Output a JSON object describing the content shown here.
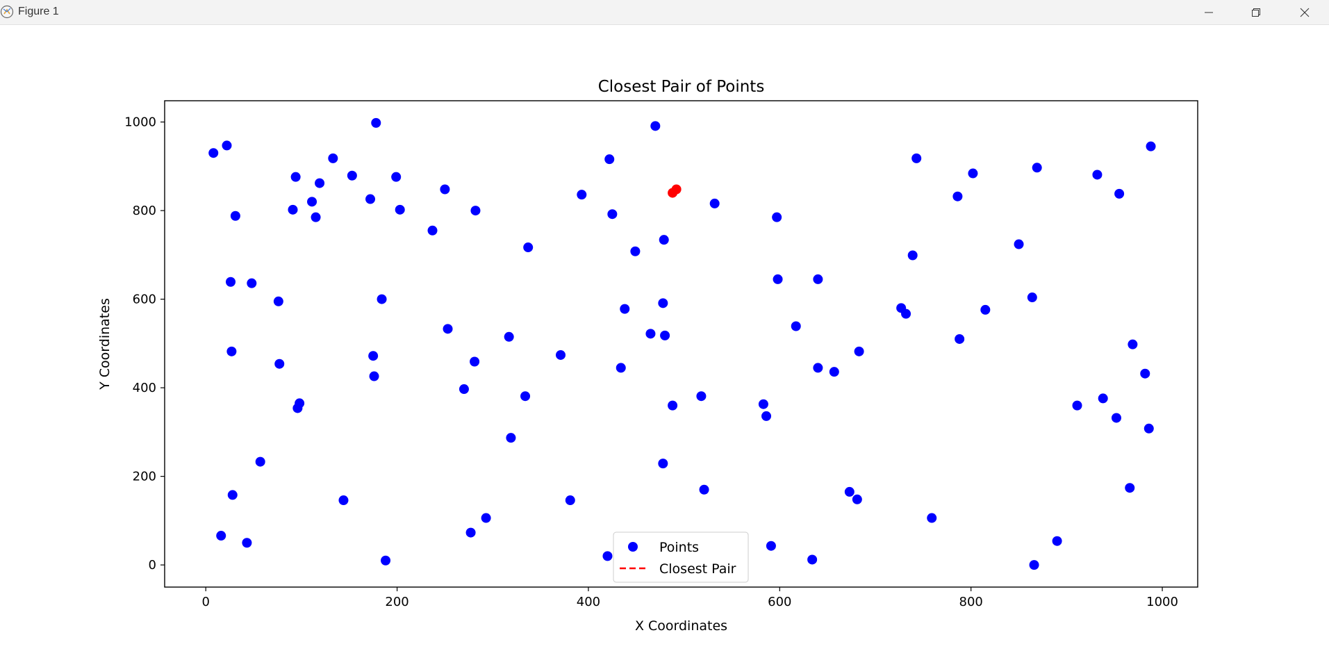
{
  "window": {
    "title": "Figure 1",
    "controls": [
      "minimize-icon",
      "restore-icon",
      "close-icon"
    ]
  },
  "chart_data": {
    "type": "scatter",
    "title": "Closest Pair of Points",
    "xlabel": "X Coordinates",
    "ylabel": "Y Coordinates",
    "xlim": [
      -43,
      1037
    ],
    "ylim": [
      -50,
      1048
    ],
    "xticks": [
      0,
      200,
      400,
      600,
      800,
      1000
    ],
    "yticks": [
      0,
      200,
      400,
      600,
      800,
      1000
    ],
    "grid": false,
    "legend": {
      "position": "lower-center",
      "entries": [
        "Points",
        "Closest Pair"
      ]
    },
    "series": [
      {
        "name": "Points",
        "color": "#0000ff",
        "marker": "circle",
        "points": [
          [
            8,
            930
          ],
          [
            22,
            947
          ],
          [
            31,
            788
          ],
          [
            26,
            639
          ],
          [
            48,
            636
          ],
          [
            27,
            482
          ],
          [
            28,
            158
          ],
          [
            16,
            66
          ],
          [
            43,
            50
          ],
          [
            57,
            233
          ],
          [
            76,
            595
          ],
          [
            77,
            454
          ],
          [
            94,
            876
          ],
          [
            91,
            802
          ],
          [
            96,
            354
          ],
          [
            98,
            365
          ],
          [
            111,
            820
          ],
          [
            115,
            785
          ],
          [
            119,
            862
          ],
          [
            133,
            918
          ],
          [
            144,
            146
          ],
          [
            153,
            879
          ],
          [
            172,
            826
          ],
          [
            178,
            998
          ],
          [
            175,
            472
          ],
          [
            176,
            426
          ],
          [
            184,
            600
          ],
          [
            188,
            10
          ],
          [
            199,
            876
          ],
          [
            203,
            802
          ],
          [
            237,
            755
          ],
          [
            250,
            848
          ],
          [
            253,
            533
          ],
          [
            270,
            397
          ],
          [
            277,
            73
          ],
          [
            281,
            459
          ],
          [
            282,
            800
          ],
          [
            293,
            106
          ],
          [
            317,
            515
          ],
          [
            319,
            287
          ],
          [
            334,
            381
          ],
          [
            337,
            717
          ],
          [
            371,
            474
          ],
          [
            381,
            146
          ],
          [
            393,
            836
          ],
          [
            420,
            20
          ],
          [
            422,
            916
          ],
          [
            425,
            792
          ],
          [
            434,
            445
          ],
          [
            438,
            578
          ],
          [
            449,
            708
          ],
          [
            465,
            522
          ],
          [
            470,
            991
          ],
          [
            478,
            591
          ],
          [
            478,
            229
          ],
          [
            479,
            734
          ],
          [
            480,
            518
          ],
          [
            488,
            360
          ],
          [
            518,
            381
          ],
          [
            521,
            170
          ],
          [
            532,
            816
          ],
          [
            583,
            363
          ],
          [
            586,
            336
          ],
          [
            591,
            43
          ],
          [
            597,
            785
          ],
          [
            598,
            645
          ],
          [
            617,
            539
          ],
          [
            634,
            12
          ],
          [
            640,
            645
          ],
          [
            640,
            445
          ],
          [
            657,
            436
          ],
          [
            673,
            165
          ],
          [
            681,
            148
          ],
          [
            683,
            482
          ],
          [
            727,
            580
          ],
          [
            732,
            567
          ],
          [
            739,
            699
          ],
          [
            743,
            918
          ],
          [
            759,
            106
          ],
          [
            786,
            832
          ],
          [
            788,
            510
          ],
          [
            802,
            884
          ],
          [
            815,
            576
          ],
          [
            850,
            724
          ],
          [
            864,
            604
          ],
          [
            866,
            0
          ],
          [
            869,
            897
          ],
          [
            890,
            54
          ],
          [
            911,
            360
          ],
          [
            932,
            881
          ],
          [
            938,
            376
          ],
          [
            952,
            332
          ],
          [
            955,
            838
          ],
          [
            966,
            174
          ],
          [
            969,
            498
          ],
          [
            982,
            432
          ],
          [
            986,
            308
          ],
          [
            988,
            945
          ]
        ]
      },
      {
        "name": "Closest Pair",
        "color": "#ff0000",
        "marker": "circle",
        "line_style": "dashed",
        "points": [
          [
            488,
            840
          ],
          [
            492,
            848
          ]
        ]
      }
    ]
  }
}
